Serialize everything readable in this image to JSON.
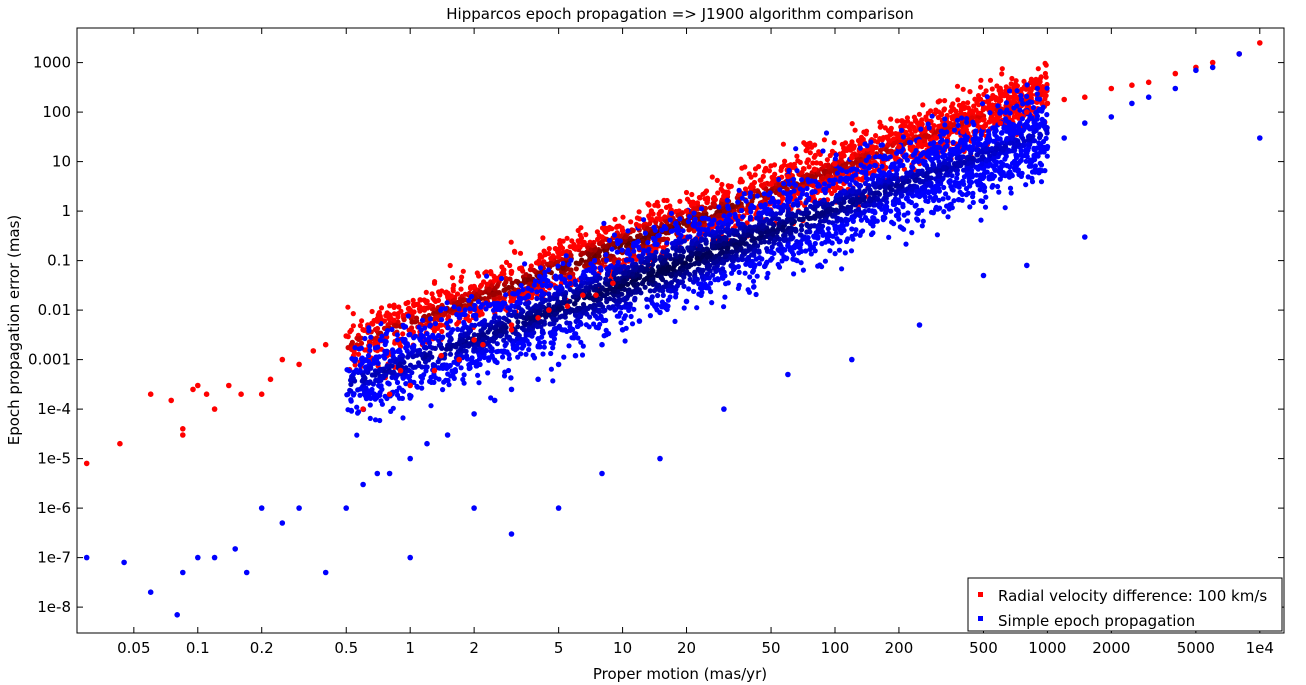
{
  "chart_data": {
    "type": "scatter",
    "title": "Hipparcos epoch propagation => J1900 algorithm comparison",
    "xlabel": "Proper motion (mas/yr)",
    "ylabel": "Epoch propagation error (mas)",
    "xscale": "log",
    "yscale": "log",
    "xlim": [
      0.027,
      13000
    ],
    "ylim": [
      3e-09,
      5000
    ],
    "x_ticks": [
      {
        "value": 0.05,
        "label": "0.05"
      },
      {
        "value": 0.1,
        "label": "0.1"
      },
      {
        "value": 0.2,
        "label": "0.2"
      },
      {
        "value": 0.5,
        "label": "0.5"
      },
      {
        "value": 1,
        "label": "1"
      },
      {
        "value": 2,
        "label": "2"
      },
      {
        "value": 5,
        "label": "5"
      },
      {
        "value": 10,
        "label": "10"
      },
      {
        "value": 20,
        "label": "20"
      },
      {
        "value": 50,
        "label": "50"
      },
      {
        "value": 100,
        "label": "100"
      },
      {
        "value": 200,
        "label": "200"
      },
      {
        "value": 500,
        "label": "500"
      },
      {
        "value": 1000,
        "label": "1000"
      },
      {
        "value": 2000,
        "label": "2000"
      },
      {
        "value": 5000,
        "label": "5000"
      },
      {
        "value": 10000,
        "label": "1e4"
      }
    ],
    "y_ticks": [
      {
        "value": 1e-08,
        "label": "1e-8"
      },
      {
        "value": 1e-07,
        "label": "1e-7"
      },
      {
        "value": 1e-06,
        "label": "1e-6"
      },
      {
        "value": 1e-05,
        "label": "1e-5"
      },
      {
        "value": 0.0001,
        "label": "1e-4"
      },
      {
        "value": 0.001,
        "label": "0.001"
      },
      {
        "value": 0.01,
        "label": "0.01"
      },
      {
        "value": 0.1,
        "label": "0.1"
      },
      {
        "value": 1,
        "label": "1"
      },
      {
        "value": 10,
        "label": "10"
      },
      {
        "value": 100,
        "label": "100"
      },
      {
        "value": 1000,
        "label": "1000"
      }
    ],
    "grid": false,
    "legend_position": "bottom-right",
    "series": [
      {
        "name": "Radial velocity difference: 100 km/s",
        "color": "#ff0000",
        "dense_color": "#5a0000",
        "x": [
          0.03,
          0.043,
          0.06,
          0.075,
          0.085,
          0.085,
          0.095,
          0.1,
          0.11,
          0.12,
          0.14,
          0.16,
          0.2,
          0.22,
          0.25,
          0.3,
          0.35,
          0.4,
          0.5,
          0.6,
          0.7,
          0.8,
          1.0,
          1.2,
          1.5,
          2.0,
          2.5,
          3.0,
          4.0,
          5.0,
          6.0,
          8.0,
          10,
          12,
          15,
          20,
          25,
          30,
          40,
          50,
          60,
          80,
          100,
          120,
          150,
          200,
          250,
          300,
          400,
          500,
          600,
          700,
          800,
          1000,
          1200,
          1500,
          2000,
          2500,
          3000,
          4000,
          5000,
          6000,
          8000,
          10000,
          0.6,
          0.8,
          1.0,
          1.3,
          1.7,
          2.2,
          3.0,
          4.0,
          5.5,
          7.5,
          0.9,
          1.4,
          2.0,
          3.0,
          4.5,
          6.5,
          9.0
        ],
        "y": [
          8e-06,
          2e-05,
          0.0002,
          0.00015,
          4e-05,
          3e-05,
          0.00025,
          0.0003,
          0.0002,
          0.0001,
          0.0003,
          0.0002,
          0.0002,
          0.0004,
          0.001,
          0.0008,
          0.0015,
          0.002,
          0.003,
          0.004,
          0.006,
          0.008,
          0.01,
          0.015,
          0.02,
          0.03,
          0.04,
          0.06,
          0.09,
          0.12,
          0.18,
          0.3,
          0.4,
          0.5,
          0.7,
          1.0,
          1.5,
          2.0,
          3.0,
          3.5,
          5.0,
          7.0,
          9.0,
          12,
          15,
          20,
          25,
          30,
          40,
          50,
          60,
          80,
          100,
          150,
          180,
          200,
          300,
          350,
          400,
          600,
          800,
          1000,
          1500,
          2500,
          0.0001,
          0.0002,
          0.0003,
          0.0006,
          0.001,
          0.002,
          0.004,
          0.007,
          0.012,
          0.02,
          0.0006,
          0.0012,
          0.0025,
          0.005,
          0.01,
          0.02,
          0.035
        ]
      },
      {
        "name": "Simple epoch propagation",
        "color": "#0000ff",
        "dense_color": "#000040",
        "x": [
          0.03,
          0.045,
          0.06,
          0.08,
          0.085,
          0.1,
          0.12,
          0.15,
          0.17,
          0.2,
          0.25,
          0.3,
          0.4,
          0.5,
          0.6,
          0.7,
          0.8,
          1.0,
          1.2,
          1.5,
          2.0,
          2.5,
          3.0,
          4.0,
          5.0,
          6.0,
          8.0,
          10,
          12,
          15,
          20,
          25,
          30,
          40,
          50,
          60,
          80,
          100,
          120,
          150,
          200,
          250,
          300,
          400,
          500,
          600,
          700,
          800,
          1000,
          1200,
          1500,
          2000,
          2500,
          3000,
          4000,
          5000,
          6000,
          8000,
          10000,
          1.0,
          2.0,
          3.0,
          5.0,
          8.0,
          15,
          30,
          60,
          120,
          250,
          500,
          800,
          1500
        ],
        "y": [
          1e-07,
          8e-08,
          2e-08,
          7e-09,
          5e-08,
          1e-07,
          1e-07,
          1.5e-07,
          5e-08,
          1e-06,
          5e-07,
          1e-06,
          5e-08,
          1e-06,
          3e-06,
          5e-06,
          5e-06,
          1e-05,
          2e-05,
          3e-05,
          8e-05,
          0.00015,
          0.00025,
          0.0004,
          0.0008,
          0.0012,
          0.002,
          0.004,
          0.006,
          0.009,
          0.015,
          0.03,
          0.05,
          0.08,
          0.15,
          0.2,
          0.3,
          0.5,
          0.7,
          1.0,
          1.5,
          2.0,
          3.0,
          4.0,
          5.0,
          7.0,
          10,
          15,
          20,
          30,
          60,
          80,
          150,
          200,
          300,
          700,
          800,
          1500,
          30,
          1e-07,
          1e-06,
          3e-07,
          1e-06,
          5e-06,
          1e-05,
          0.0001,
          0.0005,
          0.001,
          0.005,
          0.05,
          0.08,
          0.3
        ]
      }
    ]
  }
}
